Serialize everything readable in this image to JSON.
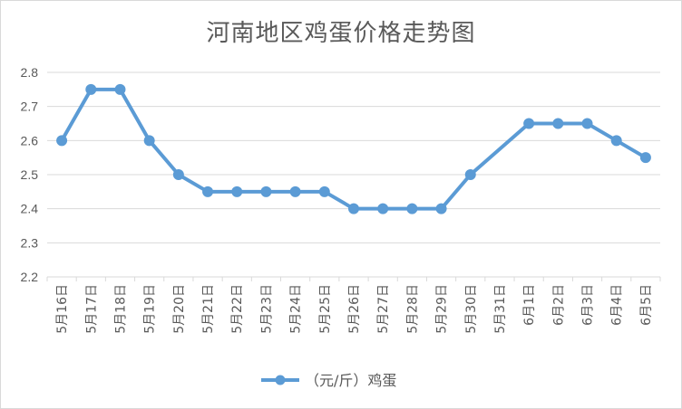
{
  "chart_data": {
    "type": "line",
    "title": "河南地区鸡蛋价格走势图",
    "xlabel": "",
    "ylabel": "",
    "categories": [
      "5月16日",
      "5月17日",
      "5月18日",
      "5月19日",
      "5月20日",
      "5月21日",
      "5月22日",
      "5月23日",
      "5月24日",
      "5月25日",
      "5月26日",
      "5月27日",
      "5月28日",
      "5月29日",
      "5月30日",
      "5月31日",
      "6月1日",
      "6月2日",
      "6月3日",
      "6月4日",
      "6月5日"
    ],
    "series": [
      {
        "name": "（元/斤）鸡蛋",
        "values": [
          2.6,
          2.75,
          2.75,
          2.6,
          2.5,
          2.45,
          2.45,
          2.45,
          2.45,
          2.45,
          2.4,
          2.4,
          2.4,
          2.4,
          2.5,
          null,
          2.65,
          2.65,
          2.65,
          2.6,
          2.55
        ],
        "color": "#5b9bd5"
      }
    ],
    "ylim": [
      2.2,
      2.8
    ],
    "yticks": [
      "2.2",
      "2.3",
      "2.4",
      "2.5",
      "2.6",
      "2.7",
      "2.8"
    ],
    "grid": true,
    "legend": "bottom",
    "colors": {
      "gridline": "#d9d9d9",
      "text": "#595959"
    }
  }
}
